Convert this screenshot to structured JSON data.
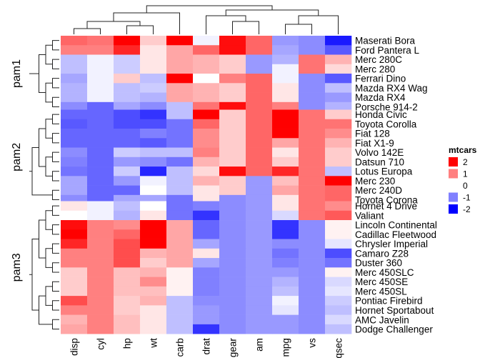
{
  "chart_data": {
    "type": "heatmap",
    "title": "",
    "columns": [
      "disp",
      "cyl",
      "hp",
      "wt",
      "carb",
      "drat",
      "gear",
      "am",
      "mpg",
      "vs",
      "qsec"
    ],
    "row_groups": [
      {
        "name": "pam1",
        "rows": [
          "Maserati Bora",
          "Ford Pantera L",
          "Merc 280C",
          "Merc 280",
          "Ferrari Dino",
          "Mazda RX4 Wag",
          "Mazda RX4",
          "Porsche 914-2"
        ],
        "values": [
          [
            1.2,
            1.1,
            2.5,
            0.4,
            3.2,
            -0.1,
            1.9,
            1.2,
            -0.8,
            -0.9,
            -1.8
          ],
          [
            1.0,
            1.0,
            1.7,
            0.2,
            0.7,
            1.2,
            1.9,
            1.2,
            -0.7,
            -0.9,
            -1.3
          ],
          [
            -0.5,
            -0.1,
            -0.4,
            0.2,
            0.7,
            0.6,
            0.4,
            -0.8,
            -0.6,
            1.1,
            0.6
          ],
          [
            -0.5,
            -0.1,
            -0.4,
            0.2,
            0.7,
            0.6,
            0.4,
            -0.8,
            -0.1,
            1.1,
            0.3
          ],
          [
            -0.7,
            -0.1,
            0.4,
            -0.5,
            2.0,
            0.0,
            1.0,
            1.2,
            -0.1,
            -0.9,
            -1.3
          ],
          [
            -0.6,
            -0.1,
            -0.5,
            -0.4,
            0.7,
            0.6,
            0.4,
            1.2,
            0.2,
            -0.9,
            -0.5
          ],
          [
            -0.6,
            -0.1,
            -0.5,
            -0.6,
            0.7,
            0.6,
            0.4,
            1.2,
            0.2,
            -0.9,
            -0.8
          ],
          [
            -0.9,
            -1.2,
            -0.7,
            -0.9,
            -0.5,
            1.1,
            1.9,
            1.2,
            1.0,
            -0.9,
            -0.6
          ]
        ]
      },
      {
        "name": "pam2",
        "rows": [
          "Honda Civic",
          "Toyota Corolla",
          "Fiat 128",
          "Fiat X1-9",
          "Volvo 142E",
          "Datsun 710",
          "Lotus Europa",
          "Merc 230",
          "Merc 240D",
          "Toyota Corona"
        ],
        "values": [
          [
            -1.2,
            -1.2,
            -1.4,
            -1.6,
            -0.5,
            2.5,
            0.4,
            1.2,
            2.0,
            1.1,
            0.4
          ],
          [
            -1.3,
            -1.2,
            -1.4,
            -1.4,
            -1.1,
            1.2,
            0.4,
            1.2,
            2.3,
            1.1,
            1.1
          ],
          [
            -1.2,
            -1.2,
            -1.2,
            -1.0,
            -1.1,
            0.9,
            0.4,
            1.2,
            2.0,
            1.1,
            0.9
          ],
          [
            -1.2,
            -1.2,
            -1.2,
            -1.3,
            -1.1,
            0.9,
            0.4,
            1.2,
            0.7,
            1.1,
            0.6
          ],
          [
            -0.9,
            -1.2,
            -0.4,
            -0.5,
            -0.5,
            1.0,
            0.4,
            1.2,
            0.2,
            1.1,
            0.4
          ],
          [
            -1.0,
            -1.2,
            -0.8,
            -0.9,
            -1.1,
            0.6,
            0.4,
            1.2,
            0.4,
            1.1,
            0.4
          ],
          [
            -1.1,
            -1.2,
            -0.4,
            -1.7,
            -0.5,
            0.3,
            1.9,
            1.2,
            1.7,
            1.1,
            -0.5
          ],
          [
            -0.7,
            -1.2,
            -0.8,
            -0.1,
            -0.5,
            0.6,
            0.4,
            -0.8,
            0.5,
            1.1,
            2.8
          ],
          [
            -0.7,
            -1.2,
            -1.2,
            0.0,
            -0.5,
            0.2,
            0.4,
            -0.8,
            0.7,
            1.1,
            1.2
          ],
          [
            -0.9,
            -1.2,
            -0.7,
            -0.7,
            -1.1,
            0.2,
            -0.9,
            -0.8,
            0.2,
            1.1,
            1.2
          ]
        ]
      },
      {
        "name": "pam3",
        "rows": [
          "Hornet 4 Drive",
          "Valiant",
          "Lincoln Continental",
          "Cadillac Fleetwood",
          "Chrysler Imperial",
          "Camaro Z28",
          "Duster 360",
          "Merc 450SLC",
          "Merc 450SE",
          "Merc 450SL",
          "Pontiac Firebird",
          "Hornet Sportabout",
          "AMC Javelin",
          "Dodge Challenger"
        ],
        "values": [
          [
            0.2,
            -0.1,
            -0.5,
            -0.0,
            -1.1,
            -1.0,
            -0.9,
            -0.8,
            0.2,
            1.1,
            0.9
          ],
          [
            -0.0,
            -0.1,
            -0.6,
            0.2,
            -1.1,
            -1.6,
            -0.9,
            -0.8,
            -0.3,
            1.1,
            1.3
          ],
          [
            1.9,
            1.0,
            0.9,
            2.2,
            0.7,
            -1.2,
            -0.9,
            -0.8,
            -1.6,
            -0.9,
            0.1
          ],
          [
            2.0,
            1.0,
            1.2,
            2.1,
            0.7,
            -1.2,
            -0.9,
            -0.8,
            -1.6,
            -0.9,
            0.1
          ],
          [
            1.7,
            1.0,
            1.4,
            2.2,
            0.7,
            -0.7,
            -0.9,
            -0.8,
            -0.9,
            -0.9,
            -0.2
          ],
          [
            1.0,
            1.0,
            1.4,
            0.6,
            0.7,
            0.2,
            -0.9,
            -0.8,
            -1.1,
            -0.9,
            -1.4
          ],
          [
            1.0,
            1.0,
            1.4,
            0.4,
            0.7,
            -0.7,
            -0.9,
            -0.8,
            -1.0,
            -0.9,
            -1.1
          ],
          [
            0.4,
            1.0,
            0.5,
            0.6,
            0.1,
            -1.0,
            -0.9,
            -0.8,
            -0.8,
            -0.9,
            0.1
          ],
          [
            0.4,
            1.0,
            0.5,
            0.9,
            0.1,
            -1.0,
            -0.9,
            -0.8,
            -0.6,
            -0.9,
            -0.3
          ],
          [
            0.4,
            1.0,
            0.5,
            0.5,
            0.1,
            -1.0,
            -0.9,
            -0.8,
            -0.5,
            -0.9,
            -0.2
          ],
          [
            1.4,
            1.0,
            0.4,
            0.6,
            -0.5,
            -0.9,
            -0.9,
            -0.8,
            -0.1,
            -0.9,
            -0.4
          ],
          [
            1.0,
            1.0,
            0.4,
            0.2,
            -0.5,
            -0.8,
            -0.9,
            -0.8,
            -0.2,
            -0.9,
            -0.5
          ],
          [
            0.6,
            1.0,
            0.5,
            0.2,
            -0.5,
            -0.8,
            -0.9,
            -0.8,
            -0.8,
            -0.9,
            -0.3
          ],
          [
            0.7,
            1.0,
            0.5,
            0.2,
            -0.5,
            -1.6,
            -0.9,
            -0.8,
            -0.8,
            -0.9,
            -0.5
          ]
        ]
      }
    ],
    "legend": {
      "title": "mtcars",
      "ticks": [
        "2",
        "1",
        "0",
        "-1",
        "-2"
      ],
      "tick_values": [
        2,
        1,
        0,
        -1,
        -2
      ],
      "placement": "right"
    },
    "color_scale": {
      "low": "#0000ff",
      "mid": "#ffffff",
      "high": "#ff0000",
      "range": [
        -2,
        2
      ]
    }
  }
}
